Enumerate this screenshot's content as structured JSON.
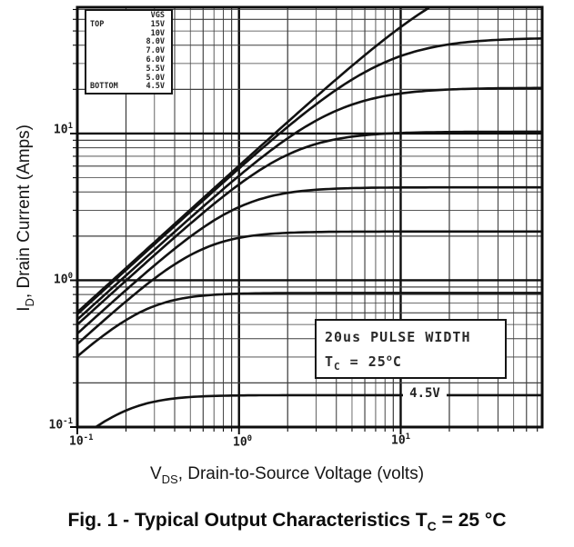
{
  "figure": {
    "caption": {
      "pre": "Fig. 1 - Typical Output Characteristics T",
      "sub": "C",
      "post": " = 25 °C"
    }
  },
  "axes": {
    "x_title": {
      "pre": "V",
      "sub": "DS",
      "post": ", Drain-to-Source Voltage (volts)"
    },
    "y_title": {
      "pre": "I",
      "sub": "D",
      "post": ", Drain Current (Amps)"
    },
    "x_ticks": [
      {
        "base": "10",
        "exp": "-1"
      },
      {
        "base": "10",
        "exp": "0"
      },
      {
        "base": "10",
        "exp": "1"
      }
    ],
    "y_ticks": [
      {
        "base": "10",
        "exp": "-1"
      },
      {
        "base": "10",
        "exp": "0"
      },
      {
        "base": "10",
        "exp": "1"
      }
    ]
  },
  "legend": {
    "rows": [
      {
        "left": "",
        "right": "VGS"
      },
      {
        "left": "TOP",
        "right": "15V"
      },
      {
        "left": "",
        "right": "10V"
      },
      {
        "left": "",
        "right": "8.0V"
      },
      {
        "left": "",
        "right": "7.0V"
      },
      {
        "left": "",
        "right": "6.0V"
      },
      {
        "left": "",
        "right": "5.5V"
      },
      {
        "left": "",
        "right": "5.0V"
      },
      {
        "left": "BOTTOM",
        "right": "4.5V"
      }
    ]
  },
  "annotation": {
    "line1": "20us PULSE WIDTH",
    "t_pre": "T",
    "t_sub": "C",
    "t_mid": " = 25",
    "t_sup": "o",
    "t_post": "C"
  },
  "curve_label": "4.5V",
  "ink": {
    "grid_minor": "#3f3f3f",
    "grid_major": "#0d0d0d",
    "curve": "#121212",
    "border": "#0d0d0d"
  },
  "chart_data": {
    "type": "line",
    "title": "Typical Output Characteristics, TC = 25 °C",
    "xlabel": "VDS, Drain-to-Source Voltage (volts)",
    "ylabel": "ID, Drain Current (Amps)",
    "x_scale": "log",
    "y_scale": "log",
    "x_range": [
      0.1,
      75
    ],
    "y_range": [
      0.1,
      72.5
    ],
    "grid": "log minor + major, both axes",
    "legend_position": "top-left, TOP curve VGS=15V to BOTTOM curve VGS=4.5V",
    "annotations": [
      "20us PULSE WIDTH",
      "TC = 25C",
      "4.5V label on bottom curve"
    ],
    "series": [
      {
        "name": "VGS = 15V",
        "model": {
          "r_lin": 0.165,
          "i_sat": 150,
          "knee": 1.6
        },
        "points": [
          [
            0.1,
            0.6
          ],
          [
            0.2,
            1.2
          ],
          [
            0.5,
            3.0
          ],
          [
            1,
            6.0
          ],
          [
            2,
            12
          ],
          [
            5,
            28
          ],
          [
            10,
            50
          ],
          [
            16,
            72
          ]
        ]
      },
      {
        "name": "VGS = 10V",
        "model": {
          "r_lin": 0.17,
          "i_sat": 45,
          "knee": 1.7
        },
        "points": [
          [
            0.1,
            0.59
          ],
          [
            0.2,
            1.17
          ],
          [
            0.5,
            2.9
          ],
          [
            1,
            5.8
          ],
          [
            2,
            11.3
          ],
          [
            5,
            23
          ],
          [
            10,
            34
          ],
          [
            20,
            41
          ],
          [
            50,
            44
          ]
        ]
      },
      {
        "name": "VGS = 8.0V",
        "model": {
          "r_lin": 0.185,
          "i_sat": 20.5,
          "knee": 1.8
        },
        "points": [
          [
            0.1,
            0.54
          ],
          [
            0.2,
            1.08
          ],
          [
            0.5,
            2.7
          ],
          [
            1,
            5.3
          ],
          [
            2,
            9.6
          ],
          [
            5,
            15.5
          ],
          [
            10,
            18.5
          ],
          [
            20,
            20
          ],
          [
            50,
            20.4
          ]
        ]
      },
      {
        "name": "VGS = 7.0V",
        "model": {
          "r_lin": 0.2,
          "i_sat": 10.3,
          "knee": 2.0
        },
        "points": [
          [
            0.1,
            0.5
          ],
          [
            0.2,
            1.0
          ],
          [
            0.5,
            2.4
          ],
          [
            1,
            4.5
          ],
          [
            2,
            7.2
          ],
          [
            5,
            9.7
          ],
          [
            10,
            10.2
          ],
          [
            50,
            10.3
          ]
        ]
      },
      {
        "name": "VGS = 6.0V",
        "model": {
          "r_lin": 0.23,
          "i_sat": 4.3,
          "knee": 2.2
        },
        "points": [
          [
            0.1,
            0.43
          ],
          [
            0.2,
            0.86
          ],
          [
            0.5,
            2.0
          ],
          [
            1,
            3.3
          ],
          [
            2,
            4.1
          ],
          [
            5,
            4.3
          ],
          [
            50,
            4.3
          ]
        ]
      },
      {
        "name": "VGS = 5.5V",
        "model": {
          "r_lin": 0.27,
          "i_sat": 2.15,
          "knee": 2.4
        },
        "points": [
          [
            0.1,
            0.37
          ],
          [
            0.2,
            0.73
          ],
          [
            0.5,
            1.5
          ],
          [
            1,
            1.95
          ],
          [
            2,
            2.1
          ],
          [
            5,
            2.15
          ],
          [
            50,
            2.15
          ]
        ]
      },
      {
        "name": "VGS = 5.0V",
        "model": {
          "r_lin": 0.32,
          "i_sat": 0.82,
          "knee": 2.6
        },
        "points": [
          [
            0.1,
            0.31
          ],
          [
            0.2,
            0.59
          ],
          [
            0.5,
            0.79
          ],
          [
            1,
            0.82
          ],
          [
            50,
            0.82
          ]
        ]
      },
      {
        "name": "VGS = 4.5V",
        "model": {
          "r_lin": 1.15,
          "i_sat": 0.165,
          "knee": 2.6
        },
        "points": [
          [
            0.15,
            0.12
          ],
          [
            0.3,
            0.16
          ],
          [
            1,
            0.165
          ],
          [
            50,
            0.165
          ]
        ]
      }
    ]
  }
}
